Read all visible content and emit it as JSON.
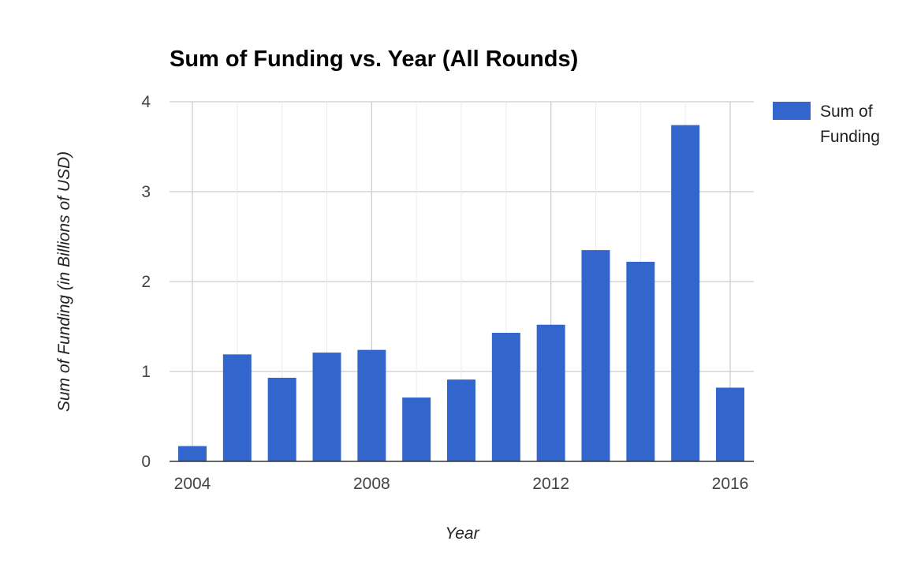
{
  "chart_data": {
    "type": "bar",
    "title": "Sum of Funding vs. Year (All Rounds)",
    "xlabel": "Year",
    "ylabel": "Sum of Funding (in Billions of USD)",
    "x": [
      2004,
      2005,
      2006,
      2007,
      2008,
      2009,
      2010,
      2011,
      2012,
      2013,
      2014,
      2015,
      2016
    ],
    "series": [
      {
        "name": "Sum of Funding",
        "values": [
          0.17,
          1.19,
          0.93,
          1.21,
          1.24,
          0.71,
          0.91,
          1.43,
          1.52,
          2.35,
          2.22,
          3.74,
          0.82
        ],
        "color": "#3366cc"
      }
    ],
    "x_ticks": [
      2004,
      2008,
      2012,
      2016
    ],
    "y_ticks": [
      0,
      1,
      2,
      3,
      4
    ],
    "ylim": [
      0,
      4
    ],
    "xlim": [
      2004,
      2016
    ],
    "grid": true,
    "legend_position": "right",
    "legend_lines": [
      "Sum of",
      "Funding"
    ]
  }
}
